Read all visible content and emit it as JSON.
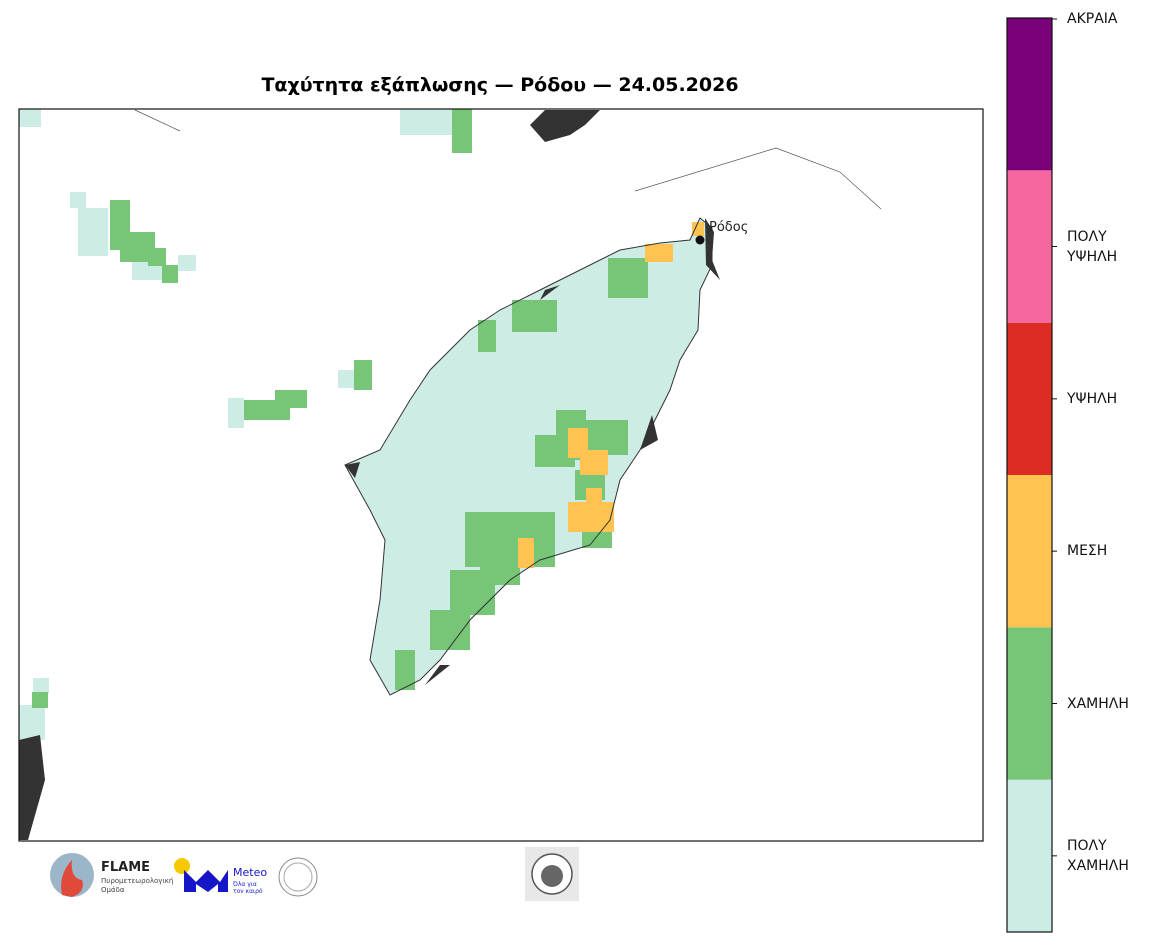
{
  "map": {
    "title": "Ταχύτητα εξάπλωσης — Ρόδου — 24.05.2026",
    "city": "Ρόδος",
    "legend": [
      {
        "label": "ΠΟΛΥ ΧΑΜΗΛΗ",
        "color": "#cdece6"
      },
      {
        "label": "ΧΑΜΗΛΗ",
        "color": "#77c677"
      },
      {
        "label": "ΜΕΣΗ",
        "color": "#fec350"
      },
      {
        "label": "ΥΨΗΛΗ",
        "color": "#dd2c24"
      },
      {
        "label": "ΠΟΛΥ ΥΨΗΛΗ",
        "color": "#f7679f"
      },
      {
        "label": "ΑΚΡΑΙΑ",
        "color": "#7a007a"
      }
    ]
  },
  "logos": {
    "flame": {
      "name": "FLAME",
      "tagline": [
        "Πυρομετεωρολογική",
        "Ομάδα"
      ]
    },
    "meteo": {
      "name": "Meteo",
      "tagline": [
        "Όλα για",
        "τον καιρό"
      ]
    }
  }
}
